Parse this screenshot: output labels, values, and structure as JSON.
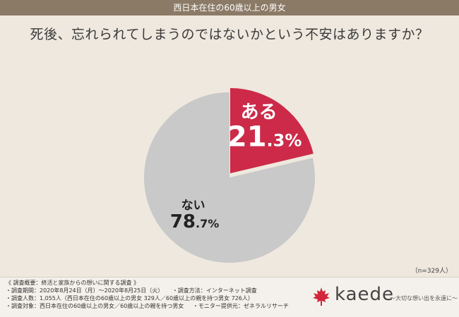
{
  "header": {
    "title": "西日本在住の60歳以上の男女"
  },
  "question": "死後、忘れられてしまうのではないかという不安はありますか？",
  "sample_note": "（n=329人）",
  "chart_data": {
    "type": "pie",
    "title": "死後、忘れられてしまうのではないかという不安はありますか？",
    "slices": [
      {
        "label": "ある",
        "value": 21.3,
        "display_main": "21",
        "display_decimal": ".3%",
        "color": "#cc2a48"
      },
      {
        "label": "ない",
        "value": 78.7,
        "display_main": "78",
        "display_decimal": ".7%",
        "color": "#c9c9c9"
      }
    ],
    "unit": "%"
  },
  "footer": {
    "overview": "《 調査概要：終活と家族からの想いに関する調査 》",
    "rows": [
      [
        "・調査期間：2020年8月24日（月）〜2020年8月25日（火）",
        "・調査方法：インターネット調査"
      ],
      [
        "・調査人数：1,055人（西日本在住の60歳以上の男女 329人／60歳以上の親を持つ男女 726人）"
      ],
      [
        "・調査対象：西日本在住の60歳以上の男女／60歳以上の親を持つ男女",
        "・モニター提供元：ゼネラルリサーチ"
      ]
    ],
    "brand": {
      "name": "kaede",
      "tagline": "〜大切な想い出を永遠に〜",
      "leaf_color": "#d1263b"
    }
  }
}
